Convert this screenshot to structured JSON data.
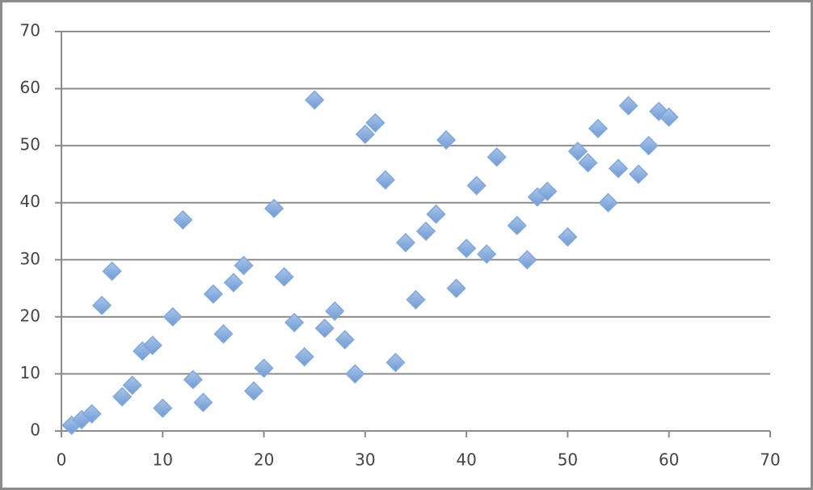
{
  "chart_data": {
    "type": "scatter",
    "x": [
      1,
      2,
      3,
      4,
      5,
      6,
      7,
      8,
      9,
      10,
      11,
      12,
      13,
      14,
      15,
      16,
      17,
      18,
      19,
      20,
      21,
      22,
      23,
      24,
      25,
      26,
      27,
      28,
      29,
      30,
      31,
      32,
      33,
      34,
      35,
      36,
      37,
      38,
      39,
      40,
      41,
      42,
      43,
      45,
      46,
      47,
      48,
      50,
      51,
      52,
      53,
      54,
      55,
      56,
      57,
      58,
      59,
      60
    ],
    "values": [
      1,
      2,
      3,
      22,
      28,
      6,
      8,
      14,
      15,
      4,
      20,
      37,
      9,
      5,
      24,
      17,
      26,
      29,
      7,
      11,
      39,
      27,
      19,
      13,
      58,
      18,
      21,
      16,
      10,
      52,
      54,
      44,
      12,
      33,
      23,
      35,
      38,
      51,
      25,
      32,
      43,
      31,
      48,
      36,
      30,
      41,
      42,
      34,
      49,
      47,
      53,
      40,
      46,
      57,
      45,
      50,
      56,
      55
    ],
    "color": "#7fa7db",
    "xlim": [
      0,
      70
    ],
    "xticks": [
      0,
      10,
      20,
      30,
      40,
      50,
      60,
      70
    ],
    "ylim": [
      0,
      70
    ],
    "yticks": [
      0,
      10,
      20,
      30,
      40,
      50,
      60,
      70
    ],
    "grid": true
  }
}
